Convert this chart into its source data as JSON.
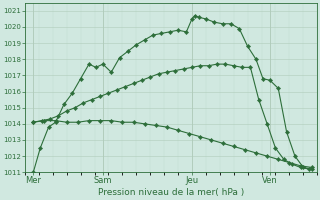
{
  "background_color": "#d0e8e0",
  "grid_major_color": "#b0ccbb",
  "grid_minor_color": "#c0ddd0",
  "line_color": "#2d6e3a",
  "title": "Pression niveau de la mer( hPa )",
  "ylim": [
    1011,
    1021.5
  ],
  "yticks": [
    1011,
    1012,
    1013,
    1014,
    1015,
    1016,
    1017,
    1018,
    1019,
    1020,
    1021
  ],
  "xlim": [
    0,
    10.5
  ],
  "day_labels": [
    "Mer",
    "Sam",
    "Jeu",
    "Ven"
  ],
  "day_positions": [
    0.3,
    2.8,
    6.0,
    8.8
  ],
  "vline_positions": [
    0.3,
    2.8,
    6.0,
    8.8
  ],
  "series": [
    {
      "x": [
        0.3,
        0.55,
        0.85,
        1.1,
        1.4,
        1.7,
        2.0,
        2.3,
        2.55,
        2.8,
        3.1,
        3.4,
        3.7,
        4.0,
        4.3,
        4.6,
        4.9,
        5.2,
        5.5,
        5.8,
        6.0,
        6.1,
        6.25,
        6.5,
        6.8,
        7.1,
        7.4,
        7.7,
        8.0,
        8.3,
        8.55,
        8.8,
        9.1,
        9.4,
        9.7,
        10.0,
        10.3
      ],
      "y": [
        1011.0,
        1012.5,
        1013.8,
        1014.1,
        1015.2,
        1015.9,
        1016.8,
        1017.7,
        1017.5,
        1017.7,
        1017.2,
        1018.1,
        1018.5,
        1018.9,
        1019.2,
        1019.5,
        1019.6,
        1019.7,
        1019.8,
        1019.7,
        1020.5,
        1020.7,
        1020.6,
        1020.5,
        1020.3,
        1020.2,
        1020.2,
        1019.9,
        1018.8,
        1018.0,
        1016.8,
        1016.7,
        1016.2,
        1013.5,
        1012.0,
        1011.3,
        1011.2
      ]
    },
    {
      "x": [
        0.3,
        0.6,
        0.9,
        1.2,
        1.5,
        1.8,
        2.1,
        2.4,
        2.7,
        3.0,
        3.3,
        3.6,
        3.9,
        4.2,
        4.5,
        4.8,
        5.1,
        5.4,
        5.7,
        6.0,
        6.3,
        6.6,
        6.9,
        7.2,
        7.5,
        7.8,
        8.1,
        8.4,
        8.7,
        9.0,
        9.3,
        9.6,
        9.9,
        10.2
      ],
      "y": [
        1014.1,
        1014.2,
        1014.3,
        1014.5,
        1014.8,
        1015.0,
        1015.3,
        1015.5,
        1015.7,
        1015.9,
        1016.1,
        1016.3,
        1016.5,
        1016.7,
        1016.9,
        1017.1,
        1017.2,
        1017.3,
        1017.4,
        1017.5,
        1017.6,
        1017.6,
        1017.7,
        1017.7,
        1017.6,
        1017.5,
        1017.5,
        1015.5,
        1014.0,
        1012.5,
        1011.8,
        1011.5,
        1011.3,
        1011.2
      ]
    },
    {
      "x": [
        0.3,
        0.7,
        1.1,
        1.5,
        1.9,
        2.3,
        2.7,
        3.1,
        3.5,
        3.9,
        4.3,
        4.7,
        5.1,
        5.5,
        5.9,
        6.3,
        6.7,
        7.1,
        7.5,
        7.9,
        8.3,
        8.7,
        9.1,
        9.5,
        9.9,
        10.3
      ],
      "y": [
        1014.1,
        1014.2,
        1014.2,
        1014.1,
        1014.1,
        1014.2,
        1014.2,
        1014.2,
        1014.1,
        1014.1,
        1014.0,
        1013.9,
        1013.8,
        1013.6,
        1013.4,
        1013.2,
        1013.0,
        1012.8,
        1012.6,
        1012.4,
        1012.2,
        1012.0,
        1011.8,
        1011.6,
        1011.4,
        1011.3
      ]
    }
  ]
}
